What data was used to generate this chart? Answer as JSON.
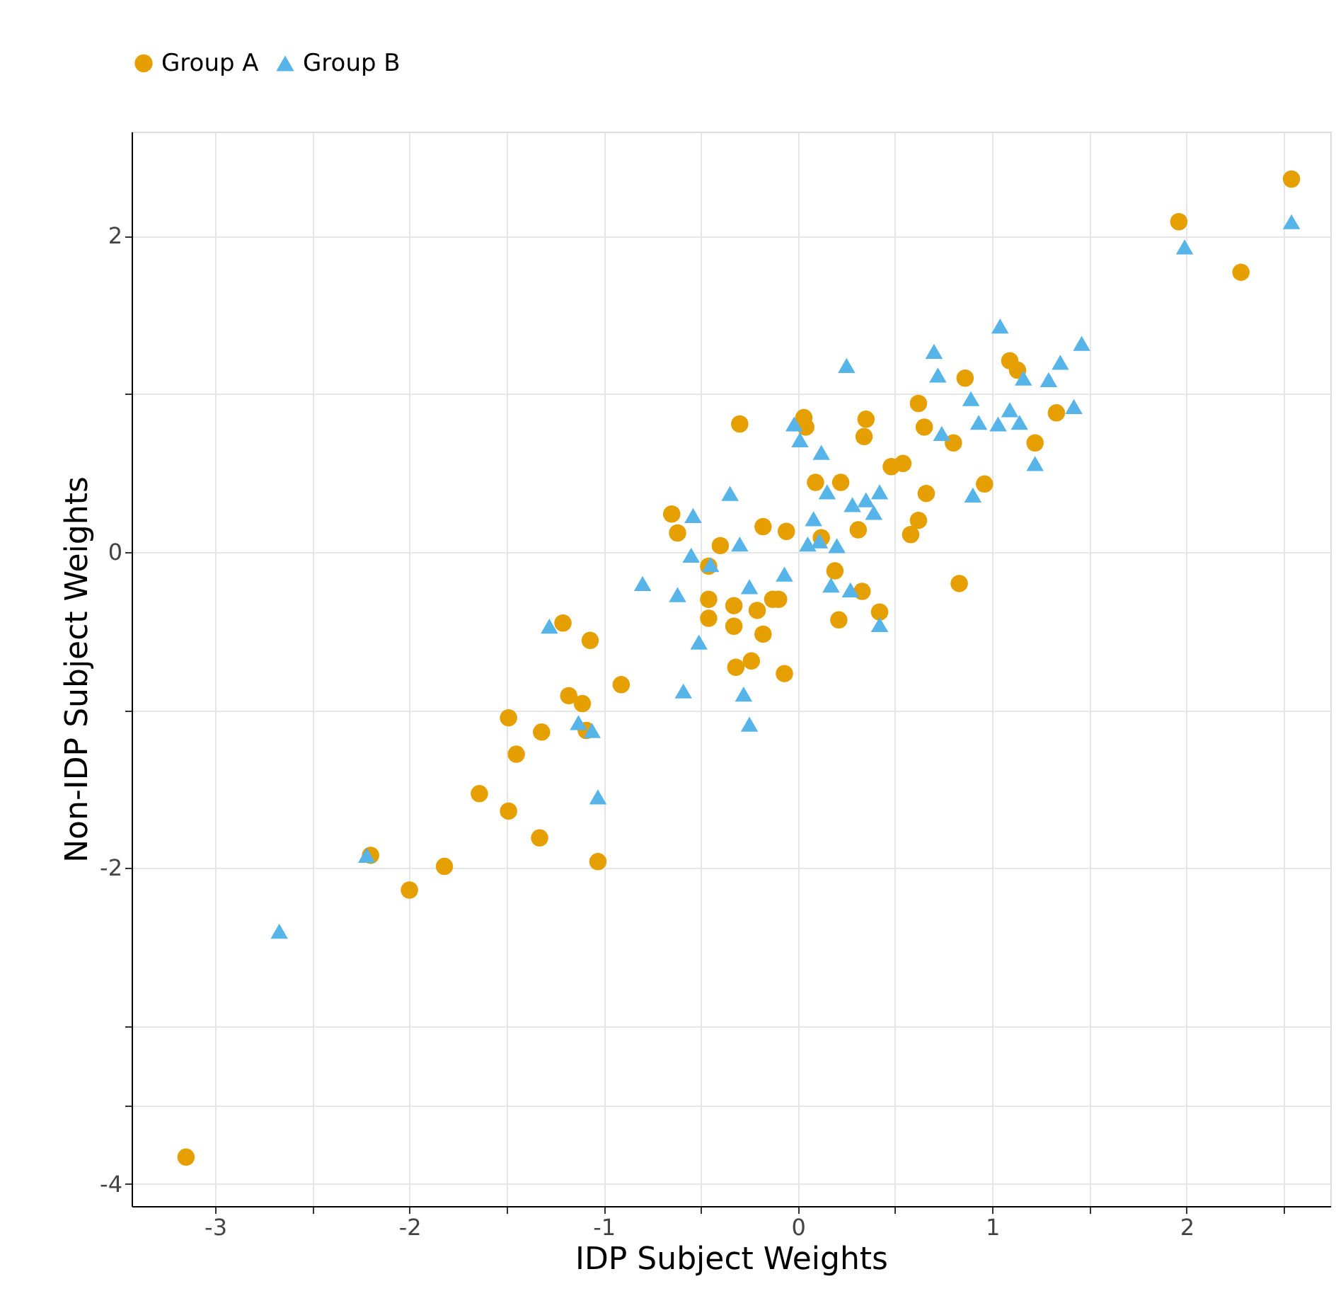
{
  "chart_data": {
    "type": "scatter",
    "xlabel": "IDP Subject Weights",
    "ylabel": "Non-IDP Subject Weights",
    "legend": "top",
    "grid": true,
    "xlim": [
      -3.43,
      2.74
    ],
    "ylim": [
      -4.14,
      2.66
    ],
    "xticks": [
      -3,
      {
        "value": -2.5,
        "label": null
      },
      -2,
      {
        "value": -1.5,
        "label": null
      },
      -1,
      {
        "value": -0.5,
        "label": null
      },
      0,
      {
        "value": 0.5,
        "label": null
      },
      1,
      {
        "value": 1.5,
        "label": null
      },
      2,
      {
        "value": 2.5,
        "label": null
      }
    ],
    "yticks": [
      {
        "value": -3.5,
        "label": null
      },
      -4,
      {
        "value": -3,
        "label": null
      },
      -2,
      {
        "value": -1,
        "label": null
      },
      0,
      {
        "value": 1,
        "label": null
      },
      2
    ],
    "series": [
      {
        "name": "Group A",
        "color": "#e69f00",
        "marker": "circle",
        "x": [
          2.54,
          1.96,
          2.28,
          -3.15,
          -2.2,
          -2.0,
          -1.82,
          -1.64,
          -1.49,
          -1.49,
          -1.45,
          -1.32,
          -1.33,
          -1.18,
          -1.21,
          -1.11,
          -1.09,
          -1.07,
          -1.03,
          -0.91,
          -0.65,
          -0.62,
          -0.46,
          -0.46,
          -0.46,
          -0.4,
          -0.3,
          -0.33,
          -0.33,
          -0.32,
          -0.24,
          -0.21,
          -0.18,
          -0.18,
          -0.13,
          -0.1,
          -0.06,
          -0.07,
          0.03,
          0.04,
          0.09,
          0.12,
          0.19,
          0.21,
          0.22,
          0.31,
          0.33,
          0.35,
          0.34,
          0.42,
          0.48,
          0.54,
          0.58,
          0.62,
          0.62,
          0.65,
          0.66,
          0.86,
          0.8,
          0.83,
          0.96,
          1.09,
          1.13,
          1.22,
          1.33
        ],
        "values": [
          2.36,
          2.09,
          1.77,
          -3.83,
          -1.92,
          -2.14,
          -1.99,
          -1.53,
          -1.64,
          -1.05,
          -1.28,
          -1.14,
          -1.81,
          -0.91,
          -0.45,
          -0.96,
          -1.13,
          -0.56,
          -1.96,
          -0.84,
          0.24,
          0.12,
          -0.3,
          -0.42,
          -0.09,
          0.04,
          0.81,
          -0.34,
          -0.47,
          -0.73,
          -0.69,
          -0.37,
          -0.52,
          0.16,
          -0.3,
          -0.3,
          0.13,
          -0.77,
          0.85,
          0.79,
          0.44,
          0.09,
          -0.12,
          -0.43,
          0.44,
          0.14,
          -0.25,
          0.84,
          0.73,
          -0.38,
          0.54,
          0.56,
          0.11,
          0.2,
          0.94,
          0.79,
          0.37,
          1.1,
          0.69,
          -0.2,
          0.43,
          1.21,
          1.15,
          0.69,
          0.88
        ]
      },
      {
        "name": "Group B",
        "color": "#56b4e9",
        "marker": "triangle",
        "x": [
          2.54,
          1.99,
          -2.67,
          -2.22,
          -1.28,
          -1.13,
          -1.06,
          -1.03,
          -0.8,
          -0.62,
          -0.59,
          -0.55,
          -0.54,
          -0.51,
          -0.45,
          -0.35,
          -0.3,
          -0.28,
          -0.25,
          -0.25,
          -0.07,
          -0.02,
          0.01,
          0.05,
          0.08,
          0.11,
          0.12,
          0.15,
          0.17,
          0.2,
          0.25,
          0.27,
          0.28,
          0.35,
          0.39,
          0.42,
          0.42,
          0.7,
          0.72,
          0.74,
          0.9,
          0.89,
          0.93,
          1.04,
          1.03,
          1.09,
          1.14,
          1.16,
          1.22,
          1.29,
          1.35,
          1.42,
          1.46
        ],
        "values": [
          2.09,
          1.93,
          -2.4,
          -1.92,
          -0.47,
          -1.08,
          -1.13,
          -1.55,
          -0.2,
          -0.27,
          -0.88,
          -0.02,
          0.23,
          -0.57,
          -0.08,
          0.37,
          0.05,
          -0.9,
          -1.09,
          -0.22,
          -0.14,
          0.81,
          0.71,
          0.05,
          0.21,
          0.07,
          0.63,
          0.38,
          -0.21,
          0.04,
          1.18,
          -0.24,
          0.3,
          0.33,
          0.25,
          0.38,
          -0.46,
          1.27,
          1.12,
          0.75,
          0.36,
          0.97,
          0.82,
          1.43,
          0.81,
          0.9,
          0.82,
          1.1,
          0.56,
          1.09,
          1.2,
          0.92,
          1.32
        ]
      }
    ]
  }
}
